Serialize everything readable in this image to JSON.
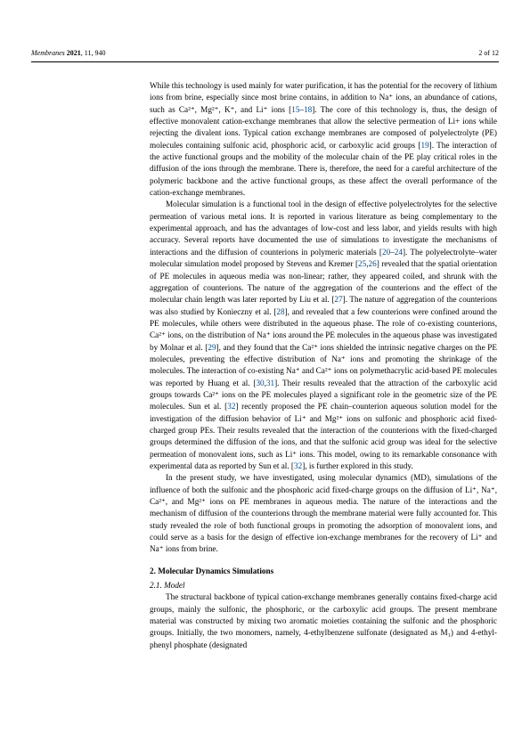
{
  "header": {
    "journal": "Membranes",
    "year": "2021",
    "volume": "11",
    "page": "940",
    "pagination": "2 of 12"
  },
  "body": {
    "p1": "While this technology is used mainly for water purification, it has the potential for the recovery of lithium ions from brine, especially since most brine contains, in addition to Na⁺ ions, an abundance of cations, such as Ca²⁺, Mg²⁺, K⁺, and Li⁺ ions [",
    "r1": "15",
    "dash1": "–",
    "r2": "18",
    "p1b": "]. The core of this technology is, thus, the design of effective monovalent cation-exchange membranes that allow the selective permeation of Li+ ions while rejecting the divalent ions. Typical cation exchange membranes are composed of polyelectrolyte (PE) molecules containing sulfonic acid, phosphoric acid, or carboxylic acid groups [",
    "r3": "19",
    "p1c": "]. The interaction of the active functional groups and the mobility of the molecular chain of the PE play critical roles in the diffusion of the ions through the membrane. There is, therefore, the need for a careful architecture of the polymeric backbone and the active functional groups, as these affect the overall performance of the cation-exchange membranes.",
    "p2a": "Molecular simulation is a functional tool in the design of effective polyelectrolytes for the selective permeation of various metal ions. It is reported in various literature as being complementary to the experimental approach, and has the advantages of low-cost and less labor, and yields results with high accuracy. Several reports have documented the use of simulations to investigate the mechanisms of interactions and the diffusion of counterions in polymeric materials [",
    "r4": "20",
    "dash2": "–",
    "r5": "24",
    "p2b": "]. The polyelectrolyte–water molecular simulation model proposed by Stevens and Kremer [",
    "r6": "25",
    "comma1": ",",
    "r7": "26",
    "p2c": "] revealed that the spatial orientation of PE molecules in aqueous media was non-linear; rather, they appeared coiled, and shrunk with the aggregation of counterions. The nature of the aggregation of the counterions and the effect of the molecular chain length was later reported by Liu et al. [",
    "r8": "27",
    "p2d": "]. The nature of aggregation of the counterions was also studied by Konieczny et al. [",
    "r9": "28",
    "p2e": "], and revealed that a few counterions were confined around the PE molecules, while others were distributed in the aqueous phase. The role of co-existing counterions, Ca²⁺ ions, on the distribution of Na⁺ ions around the PE molecules in the aqueous phase was investigated by Molnar et al. [",
    "r10": "29",
    "p2f": "], and they found that the Ca²⁺ ions shielded the intrinsic negative charges on the PE molecules, preventing the effective distribution of Na⁺ ions and promoting the shrinkage of the molecules. The interaction of co-existing Na⁺ and Ca²⁺ ions on polymethacrylic acid-based PE molecules was reported by Huang et al. [",
    "r11": "30",
    "comma2": ",",
    "r12": "31",
    "p2g": "]. Their results revealed that the attraction of the carboxylic acid groups towards Ca²⁺ ions on the PE molecules played a significant role in the geometric size of the PE molecules. Sun et al. [",
    "r13": "32",
    "p2h": "] recently proposed the PE chain–counterion aqueous solution model for the investigation of the diffusion behavior of Li⁺ and Mg²⁺ ions on sulfonic and phosphoric acid fixed-charged group PEs. Their results revealed that the interaction of the counterions with the fixed-charged groups determined the diffusion of the ions, and that the sulfonic acid group was ideal for the selective permeation of monovalent ions, such as Li⁺ ions. This model, owing to its remarkable consonance with experimental data as reported by Sun et al. [",
    "r14": "32",
    "p2i": "], is further explored in this study.",
    "p3": "In the present study, we have investigated, using molecular dynamics (MD), simulations of the influence of both the sulfonic and the phosphoric acid fixed-charge groups on the diffusion of Li⁺, Na⁺, Ca²⁺, and Mg²⁺ ions on PE membranes in aqueous media. The nature of the interactions and the mechanism of diffusion of the counterions through the membrane material were fully accounted for. This study revealed the role of both functional groups in promoting the adsorption of monovalent ions, and could serve as a basis for the design of effective ion-exchange membranes for the recovery of Li⁺ and Na⁺ ions from brine.",
    "sec": "2. Molecular Dynamics Simulations",
    "subsec": "2.1. Model",
    "p4": "The structural backbone of typical cation-exchange membranes generally contains fixed-charge acid groups, mainly the sulfonic, the phosphoric, or the carboxylic acid groups. The present membrane material was constructed by mixing two aromatic moieties containing the sulfonic and the phosphoric groups. Initially, the two monomers, namely, 4-ethylbenzene sulfonate (designated as M₁) and 4-ethyl-phenyl phosphate (designated"
  }
}
